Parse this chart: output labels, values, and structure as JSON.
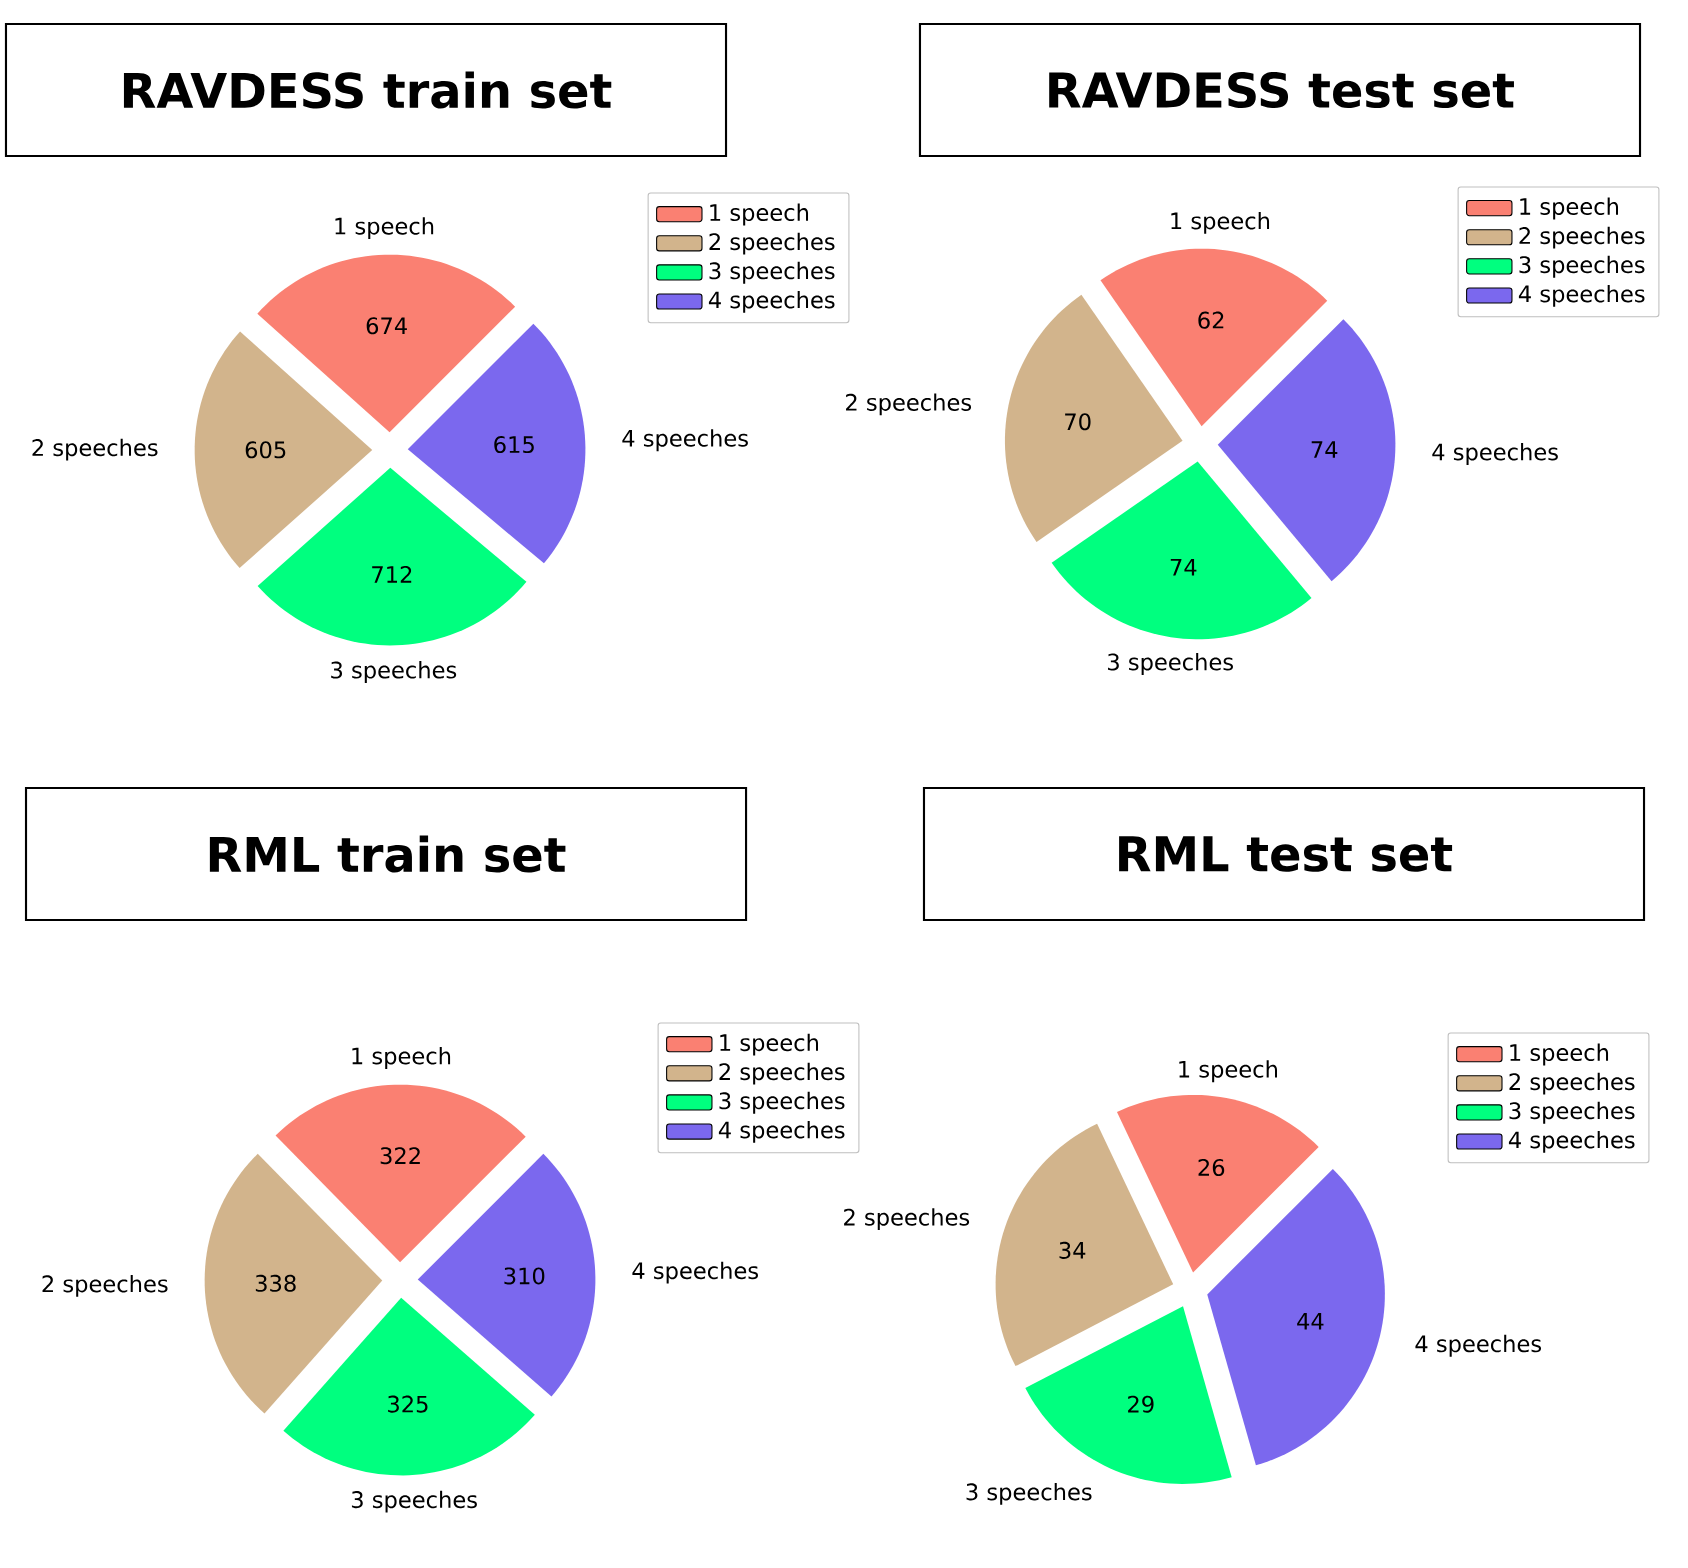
{
  "chart_data": [
    {
      "type": "pie",
      "title": "RAVDESS train set",
      "categories": [
        "1 speech",
        "2 speeches",
        "3 speeches",
        "4 speeches"
      ],
      "values": [
        674,
        605,
        712,
        615
      ],
      "colors": [
        "#fa8072",
        "#d2b48c",
        "#00ff7f",
        "#7b68ee"
      ],
      "legend": "top right",
      "data_labels": true
    },
    {
      "type": "pie",
      "title": "RAVDESS test set",
      "categories": [
        "1 speech",
        "2 speeches",
        "3 speeches",
        "4 speeches"
      ],
      "values": [
        62,
        70,
        74,
        74
      ],
      "colors": [
        "#fa8072",
        "#d2b48c",
        "#00ff7f",
        "#7b68ee"
      ],
      "legend": "top right",
      "data_labels": true
    },
    {
      "type": "pie",
      "title": "RML train set",
      "categories": [
        "1 speech",
        "2 speeches",
        "3 speeches",
        "4 speeches"
      ],
      "values": [
        322,
        338,
        325,
        310
      ],
      "colors": [
        "#fa8072",
        "#d2b48c",
        "#00ff7f",
        "#7b68ee"
      ],
      "legend": "top right",
      "data_labels": true
    },
    {
      "type": "pie",
      "title": "RML test set",
      "categories": [
        "1 speech",
        "2 speeches",
        "3 speeches",
        "4 speeches"
      ],
      "values": [
        26,
        34,
        29,
        44
      ],
      "colors": [
        "#fa8072",
        "#d2b48c",
        "#00ff7f",
        "#7b68ee"
      ],
      "legend": "top right",
      "data_labels": true
    }
  ]
}
